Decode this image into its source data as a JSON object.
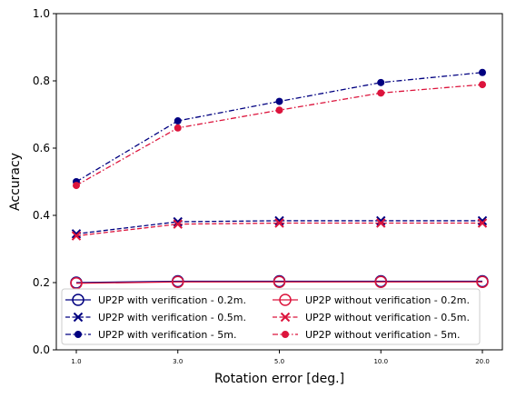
{
  "chart_data": {
    "type": "line",
    "categories": [
      "1.0",
      "3.0",
      "5.0",
      "10.0",
      "20.0"
    ],
    "xlabel": "Rotation error [deg.]",
    "ylabel": "Accuracy",
    "ylim": [
      0.0,
      1.0
    ],
    "yticks": [
      "0.0",
      "0.2",
      "0.4",
      "0.6",
      "0.8",
      "1.0"
    ],
    "grid": false,
    "legend_position": "lower-center",
    "series": [
      {
        "name": "UP2P with verification - 0.2m.",
        "values": [
          0.2,
          0.204,
          0.204,
          0.204,
          0.204
        ],
        "color": "#000080",
        "linestyle": "solid",
        "marker": "open-circle"
      },
      {
        "name": "UP2P with verification - 0.5m.",
        "values": [
          0.345,
          0.381,
          0.384,
          0.384,
          0.384
        ],
        "color": "#000080",
        "linestyle": "dashed",
        "marker": "x"
      },
      {
        "name": "UP2P with verification - 5m.",
        "values": [
          0.5,
          0.681,
          0.739,
          0.795,
          0.825
        ],
        "color": "#000080",
        "linestyle": "dashdot",
        "marker": "dot"
      },
      {
        "name": "UP2P without verification - 0.2m.",
        "values": [
          0.198,
          0.202,
          0.202,
          0.202,
          0.202
        ],
        "color": "#dc143c",
        "linestyle": "solid",
        "marker": "open-circle"
      },
      {
        "name": "UP2P without verification - 0.5m.",
        "values": [
          0.339,
          0.374,
          0.377,
          0.377,
          0.377
        ],
        "color": "#dc143c",
        "linestyle": "dashed",
        "marker": "x"
      },
      {
        "name": "UP2P without verification - 5m.",
        "values": [
          0.489,
          0.66,
          0.713,
          0.764,
          0.789
        ],
        "color": "#dc143c",
        "linestyle": "dashdot",
        "marker": "dot"
      }
    ]
  }
}
